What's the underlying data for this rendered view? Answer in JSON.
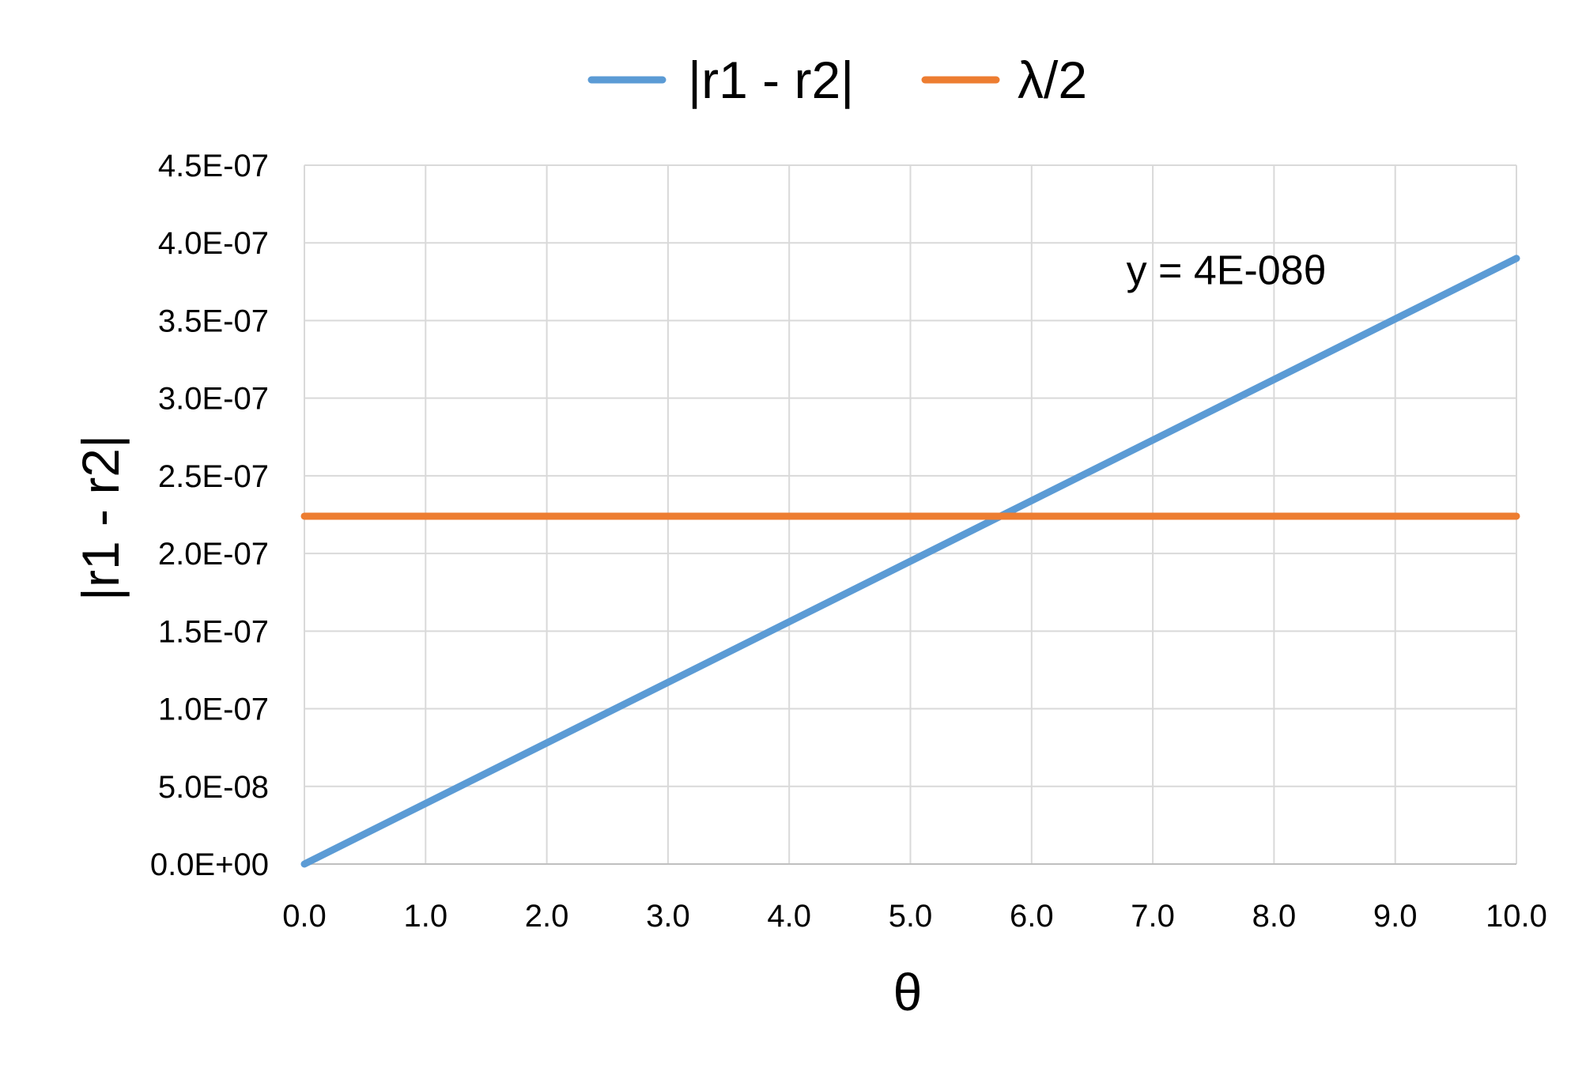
{
  "chart_data": {
    "type": "line",
    "title": "",
    "xlabel": "θ",
    "ylabel": "|r1 - r2|",
    "xlim": [
      0,
      10
    ],
    "ylim": [
      0,
      4.5e-07
    ],
    "grid": true,
    "legend_position": "top",
    "x_ticks": [
      "0.0",
      "1.0",
      "2.0",
      "3.0",
      "4.0",
      "5.0",
      "6.0",
      "7.0",
      "8.0",
      "9.0",
      "10.0"
    ],
    "y_ticks": [
      "0.0E+00",
      "5.0E-08",
      "1.0E-07",
      "1.5E-07",
      "2.0E-07",
      "2.5E-07",
      "3.0E-07",
      "3.5E-07",
      "4.0E-07",
      "4.5E-07"
    ],
    "series": [
      {
        "name": "|r1 - r2|",
        "color": "#5B9BD5",
        "x": [
          0,
          10
        ],
        "y": [
          0,
          3.9e-07
        ]
      },
      {
        "name": "λ/2",
        "color": "#ED7D31",
        "x": [
          0,
          10
        ],
        "y": [
          2.24e-07,
          2.24e-07
        ]
      }
    ],
    "annotations": [
      {
        "text": "y = 4E-08θ",
        "x": 7.6,
        "y": 3.8e-07
      }
    ]
  }
}
